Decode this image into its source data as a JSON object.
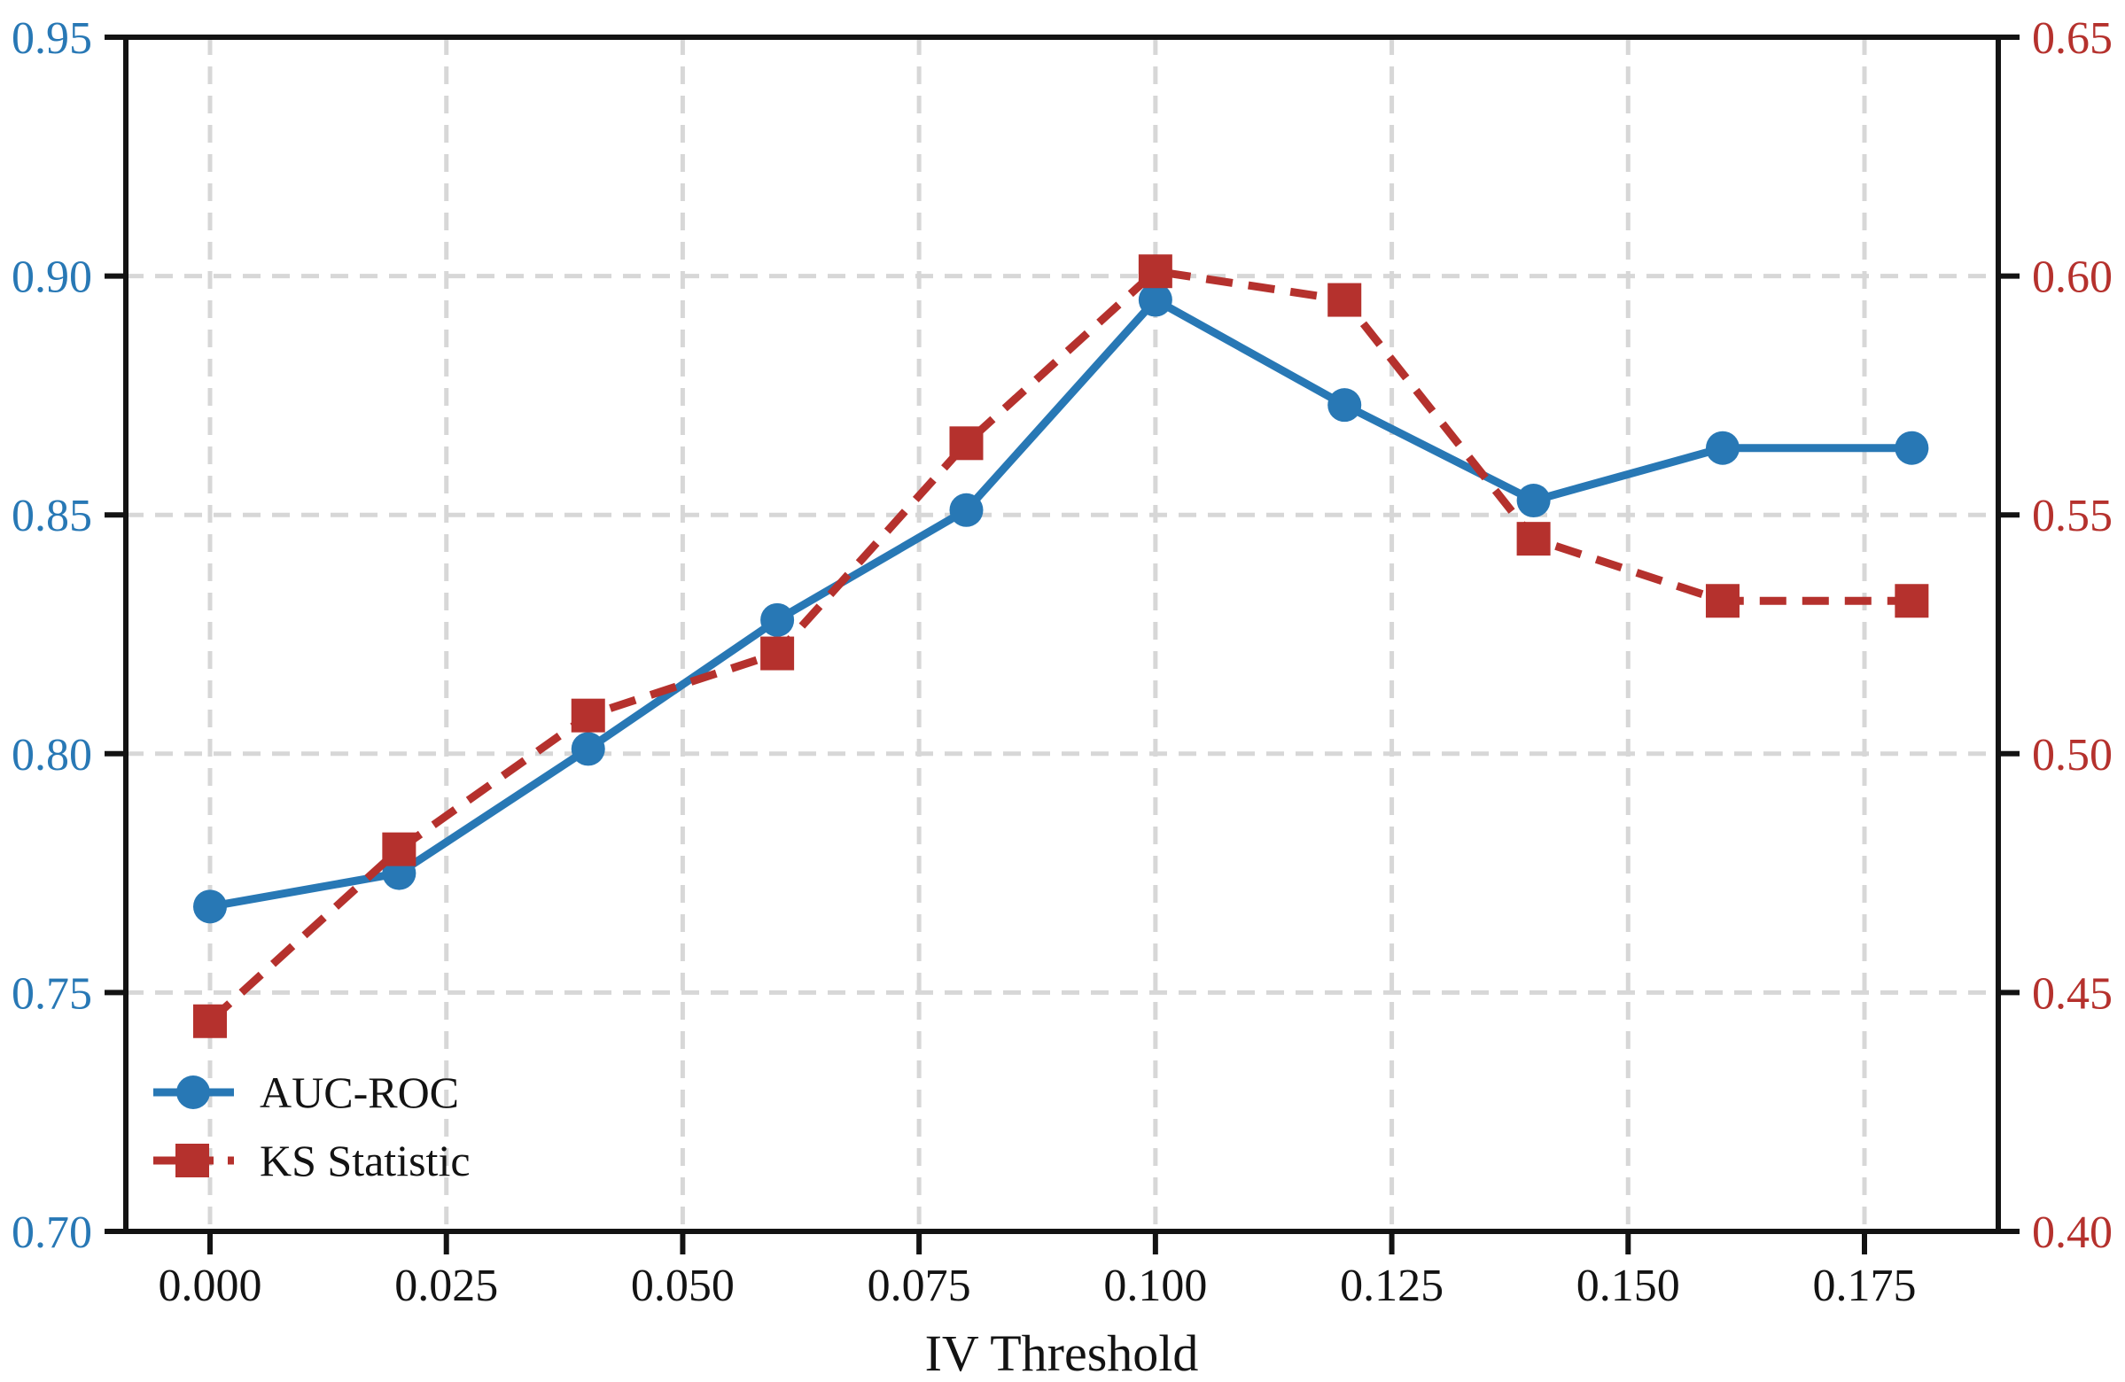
{
  "chart_data": {
    "type": "line",
    "title": "",
    "xlabel": "IV Threshold",
    "x": [
      0.0,
      0.02,
      0.04,
      0.06,
      0.08,
      0.1,
      0.12,
      0.14,
      0.16,
      0.18
    ],
    "series": [
      {
        "name": "AUC-ROC",
        "axis": "left",
        "color": "#2878b5",
        "style": "solid",
        "marker": "circle",
        "values": [
          0.768,
          0.775,
          0.801,
          0.828,
          0.851,
          0.895,
          0.873,
          0.853,
          0.864,
          0.864
        ]
      },
      {
        "name": "KS Statistic",
        "axis": "right",
        "color": "#b5312d",
        "style": "dashed",
        "marker": "square",
        "values": [
          0.444,
          0.48,
          0.508,
          0.521,
          0.565,
          0.601,
          0.595,
          0.545,
          0.532,
          0.532
        ]
      }
    ],
    "left_axis": {
      "min": 0.7,
      "max": 0.95,
      "ticklabels": [
        "0.95",
        "0.90",
        "0.85",
        "0.80",
        "0.75",
        "0.70"
      ],
      "color": "#2878b5"
    },
    "right_axis": {
      "min": 0.4,
      "max": 0.65,
      "ticklabels": [
        "0.65",
        "0.60",
        "0.55",
        "0.50",
        "0.45",
        "0.40"
      ],
      "color": "#b5312d"
    },
    "x_axis": {
      "ticks": [
        0.0,
        0.025,
        0.05,
        0.075,
        0.1,
        0.125,
        0.15,
        0.175
      ],
      "ticklabels": [
        "0.000",
        "0.025",
        "0.050",
        "0.075",
        "0.100",
        "0.125",
        "0.150",
        "0.175"
      ],
      "color": "#131313"
    },
    "grid": {
      "horizontal_at_left_values": [
        0.9,
        0.85,
        0.8,
        0.75
      ],
      "vertical_at_x": [
        0.0,
        0.025,
        0.05,
        0.075,
        0.1,
        0.125,
        0.15,
        0.175
      ],
      "color": "#d7d7d7",
      "style": "dashed"
    },
    "legend": {
      "position": "lower left",
      "entries": [
        "AUC-ROC",
        "KS Statistic"
      ]
    },
    "frame_color": "#131313"
  }
}
